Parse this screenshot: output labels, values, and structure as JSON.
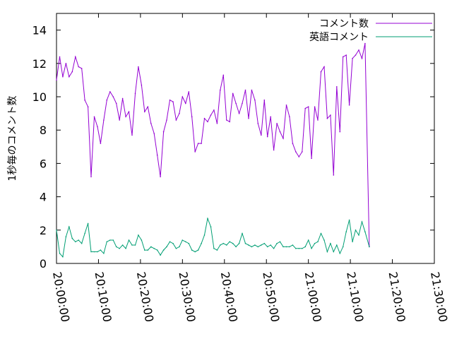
{
  "chart_data": {
    "type": "line",
    "ylabel": "1秒毎のコメント数",
    "xlabel": "",
    "ylim": [
      0,
      15
    ],
    "yticks": [
      0,
      2,
      4,
      6,
      8,
      10,
      12,
      14
    ],
    "xlim": [
      "20:00:00",
      "21:30:00"
    ],
    "xticks": [
      "20:00:00",
      "20:10:00",
      "20:20:00",
      "20:30:00",
      "20:40:00",
      "20:50:00",
      "21:00:00",
      "21:10:00",
      "21:20:00",
      "21:30:00"
    ],
    "legend_position": "top-right",
    "grid": false,
    "series": [
      {
        "name": "コメント数",
        "color": "#9400d3",
        "points": [
          [
            "20:00:00",
            11.0
          ],
          [
            "20:00:45",
            12.4
          ],
          [
            "20:01:30",
            11.2
          ],
          [
            "20:02:15",
            12.0
          ],
          [
            "20:03:00",
            11.2
          ],
          [
            "20:03:45",
            11.5
          ],
          [
            "20:04:30",
            12.4
          ],
          [
            "20:05:15",
            11.8
          ],
          [
            "20:06:00",
            11.7
          ],
          [
            "20:06:45",
            9.8
          ],
          [
            "20:07:30",
            9.4
          ],
          [
            "20:08:15",
            5.2
          ],
          [
            "20:09:00",
            8.8
          ],
          [
            "20:09:45",
            8.2
          ],
          [
            "20:10:30",
            7.2
          ],
          [
            "20:11:15",
            8.6
          ],
          [
            "20:12:00",
            9.8
          ],
          [
            "20:12:45",
            10.3
          ],
          [
            "20:13:30",
            10.0
          ],
          [
            "20:14:15",
            9.6
          ],
          [
            "20:15:00",
            8.6
          ],
          [
            "20:15:45",
            9.9
          ],
          [
            "20:16:30",
            8.8
          ],
          [
            "20:17:15",
            9.1
          ],
          [
            "20:18:00",
            7.7
          ],
          [
            "20:18:45",
            10.2
          ],
          [
            "20:19:30",
            11.8
          ],
          [
            "20:20:15",
            10.7
          ],
          [
            "20:21:00",
            9.1
          ],
          [
            "20:21:45",
            9.4
          ],
          [
            "20:22:30",
            8.4
          ],
          [
            "20:23:15",
            7.8
          ],
          [
            "20:24:00",
            6.5
          ],
          [
            "20:24:45",
            5.2
          ],
          [
            "20:25:30",
            7.9
          ],
          [
            "20:26:15",
            8.6
          ],
          [
            "20:27:00",
            9.8
          ],
          [
            "20:27:45",
            9.7
          ],
          [
            "20:28:30",
            8.6
          ],
          [
            "20:29:15",
            9.0
          ],
          [
            "20:30:00",
            10.0
          ],
          [
            "20:30:45",
            9.6
          ],
          [
            "20:31:30",
            10.3
          ],
          [
            "20:32:15",
            8.8
          ],
          [
            "20:33:00",
            6.7
          ],
          [
            "20:33:45",
            7.2
          ],
          [
            "20:34:30",
            7.2
          ],
          [
            "20:35:15",
            8.7
          ],
          [
            "20:36:00",
            8.5
          ],
          [
            "20:36:45",
            8.9
          ],
          [
            "20:37:30",
            9.2
          ],
          [
            "20:38:15",
            8.4
          ],
          [
            "20:39:00",
            10.4
          ],
          [
            "20:39:45",
            11.3
          ],
          [
            "20:40:30",
            8.6
          ],
          [
            "20:41:15",
            8.5
          ],
          [
            "20:42:00",
            10.2
          ],
          [
            "20:42:45",
            9.6
          ],
          [
            "20:43:30",
            9.0
          ],
          [
            "20:44:15",
            9.6
          ],
          [
            "20:45:00",
            10.4
          ],
          [
            "20:45:45",
            8.7
          ],
          [
            "20:46:30",
            10.4
          ],
          [
            "20:47:15",
            9.8
          ],
          [
            "20:48:00",
            8.4
          ],
          [
            "20:48:45",
            7.7
          ],
          [
            "20:49:30",
            9.8
          ],
          [
            "20:50:15",
            7.6
          ],
          [
            "20:51:00",
            8.8
          ],
          [
            "20:51:45",
            6.8
          ],
          [
            "20:52:30",
            8.4
          ],
          [
            "20:53:15",
            7.9
          ],
          [
            "20:54:00",
            7.5
          ],
          [
            "20:54:45",
            9.5
          ],
          [
            "20:55:30",
            8.8
          ],
          [
            "20:56:15",
            7.2
          ],
          [
            "20:57:00",
            6.7
          ],
          [
            "20:57:45",
            6.4
          ],
          [
            "20:58:30",
            6.7
          ],
          [
            "20:59:15",
            9.3
          ],
          [
            "21:00:00",
            9.4
          ],
          [
            "21:00:45",
            6.3
          ],
          [
            "21:01:30",
            9.4
          ],
          [
            "21:02:15",
            8.6
          ],
          [
            "21:03:00",
            11.5
          ],
          [
            "21:03:45",
            11.8
          ],
          [
            "21:04:30",
            8.7
          ],
          [
            "21:05:15",
            8.9
          ],
          [
            "21:06:00",
            5.3
          ],
          [
            "21:06:45",
            10.6
          ],
          [
            "21:07:30",
            7.9
          ],
          [
            "21:08:15",
            12.4
          ],
          [
            "21:09:00",
            12.5
          ],
          [
            "21:09:45",
            9.5
          ],
          [
            "21:10:30",
            12.3
          ],
          [
            "21:11:15",
            12.5
          ],
          [
            "21:12:00",
            12.8
          ],
          [
            "21:12:45",
            12.3
          ],
          [
            "21:13:30",
            13.2
          ],
          [
            "21:14:30",
            1.0
          ]
        ]
      },
      {
        "name": "英語コメント",
        "color": "#009e73",
        "points": [
          [
            "20:00:00",
            2.0
          ],
          [
            "20:00:45",
            0.6
          ],
          [
            "20:01:30",
            0.4
          ],
          [
            "20:02:15",
            1.6
          ],
          [
            "20:03:00",
            2.2
          ],
          [
            "20:03:45",
            1.5
          ],
          [
            "20:04:30",
            1.3
          ],
          [
            "20:05:15",
            1.4
          ],
          [
            "20:06:00",
            1.2
          ],
          [
            "20:06:45",
            1.8
          ],
          [
            "20:07:30",
            2.4
          ],
          [
            "20:08:15",
            0.7
          ],
          [
            "20:09:00",
            0.7
          ],
          [
            "20:09:45",
            0.7
          ],
          [
            "20:10:30",
            0.8
          ],
          [
            "20:11:15",
            0.6
          ],
          [
            "20:12:00",
            1.3
          ],
          [
            "20:12:45",
            1.4
          ],
          [
            "20:13:30",
            1.4
          ],
          [
            "20:14:15",
            1.0
          ],
          [
            "20:15:00",
            0.9
          ],
          [
            "20:15:45",
            1.1
          ],
          [
            "20:16:30",
            0.9
          ],
          [
            "20:17:15",
            1.4
          ],
          [
            "20:18:00",
            1.1
          ],
          [
            "20:18:45",
            1.1
          ],
          [
            "20:19:30",
            1.7
          ],
          [
            "20:20:15",
            1.4
          ],
          [
            "20:21:00",
            0.8
          ],
          [
            "20:21:45",
            0.8
          ],
          [
            "20:22:30",
            1.0
          ],
          [
            "20:23:15",
            0.9
          ],
          [
            "20:24:00",
            0.8
          ],
          [
            "20:24:45",
            0.5
          ],
          [
            "20:25:30",
            0.8
          ],
          [
            "20:26:15",
            1.0
          ],
          [
            "20:27:00",
            1.3
          ],
          [
            "20:27:45",
            1.2
          ],
          [
            "20:28:30",
            0.9
          ],
          [
            "20:29:15",
            1.0
          ],
          [
            "20:30:00",
            1.4
          ],
          [
            "20:30:45",
            1.3
          ],
          [
            "20:31:30",
            1.2
          ],
          [
            "20:32:15",
            0.8
          ],
          [
            "20:33:00",
            0.7
          ],
          [
            "20:33:45",
            0.8
          ],
          [
            "20:34:30",
            1.2
          ],
          [
            "20:35:15",
            1.7
          ],
          [
            "20:36:00",
            2.7
          ],
          [
            "20:36:45",
            2.2
          ],
          [
            "20:37:30",
            0.9
          ],
          [
            "20:38:15",
            0.8
          ],
          [
            "20:39:00",
            1.1
          ],
          [
            "20:39:45",
            1.2
          ],
          [
            "20:40:30",
            1.1
          ],
          [
            "20:41:15",
            1.3
          ],
          [
            "20:42:00",
            1.2
          ],
          [
            "20:42:45",
            1.0
          ],
          [
            "20:43:30",
            1.2
          ],
          [
            "20:44:15",
            1.8
          ],
          [
            "20:45:00",
            1.2
          ],
          [
            "20:45:45",
            1.1
          ],
          [
            "20:46:30",
            1.0
          ],
          [
            "20:47:15",
            1.1
          ],
          [
            "20:48:00",
            1.0
          ],
          [
            "20:48:45",
            1.1
          ],
          [
            "20:49:30",
            1.2
          ],
          [
            "20:50:15",
            1.0
          ],
          [
            "20:51:00",
            1.1
          ],
          [
            "20:51:45",
            0.9
          ],
          [
            "20:52:30",
            1.2
          ],
          [
            "20:53:15",
            1.3
          ],
          [
            "20:54:00",
            1.0
          ],
          [
            "20:54:45",
            1.0
          ],
          [
            "20:55:30",
            1.0
          ],
          [
            "20:56:15",
            1.1
          ],
          [
            "20:57:00",
            0.9
          ],
          [
            "20:57:45",
            0.9
          ],
          [
            "20:58:30",
            0.9
          ],
          [
            "20:59:15",
            1.0
          ],
          [
            "21:00:00",
            1.4
          ],
          [
            "21:00:45",
            0.9
          ],
          [
            "21:01:30",
            1.2
          ],
          [
            "21:02:15",
            1.3
          ],
          [
            "21:03:00",
            1.8
          ],
          [
            "21:03:45",
            1.4
          ],
          [
            "21:04:30",
            0.7
          ],
          [
            "21:05:15",
            1.2
          ],
          [
            "21:06:00",
            0.7
          ],
          [
            "21:06:45",
            1.1
          ],
          [
            "21:07:30",
            0.6
          ],
          [
            "21:08:15",
            1.0
          ],
          [
            "21:09:00",
            1.9
          ],
          [
            "21:09:45",
            2.6
          ],
          [
            "21:10:30",
            1.3
          ],
          [
            "21:11:15",
            2.0
          ],
          [
            "21:12:00",
            1.7
          ],
          [
            "21:12:45",
            2.5
          ],
          [
            "21:13:30",
            1.9
          ],
          [
            "21:14:30",
            1.0
          ]
        ]
      }
    ]
  }
}
